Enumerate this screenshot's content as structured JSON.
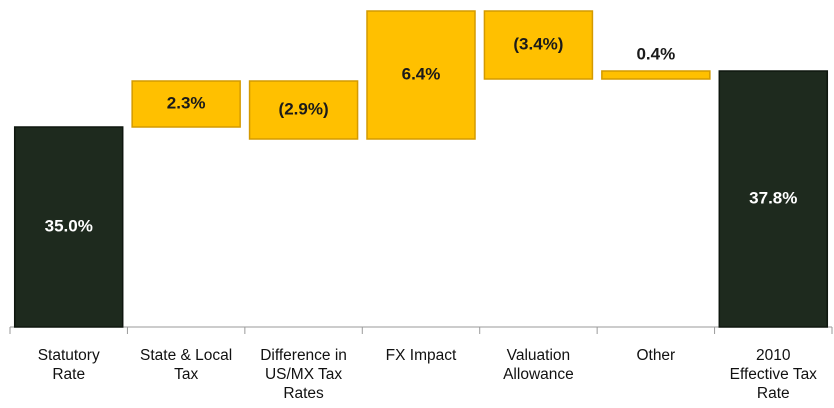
{
  "chart_data": {
    "type": "waterfall",
    "categories": [
      "Statutory Rate",
      "State & Local Tax",
      "Difference in US/MX Tax Rates",
      "FX Impact",
      "Valuation Allowance",
      "Other",
      "2010 Effective Tax Rate"
    ],
    "values": [
      35.0,
      2.3,
      -2.9,
      6.4,
      -3.4,
      0.4,
      37.8
    ],
    "value_labels": [
      "35.0%",
      "2.3%",
      "(2.9%)",
      "6.4%",
      "(3.4%)",
      "0.4%",
      "37.8%"
    ],
    "is_total": [
      true,
      false,
      false,
      false,
      false,
      false,
      true
    ],
    "colors": [
      "#1e2a1e",
      "#ffc000",
      "#ffc000",
      "#ffc000",
      "#ffc000",
      "#ffc000",
      "#1e2a1e"
    ],
    "ylim": [
      25,
      41
    ]
  }
}
